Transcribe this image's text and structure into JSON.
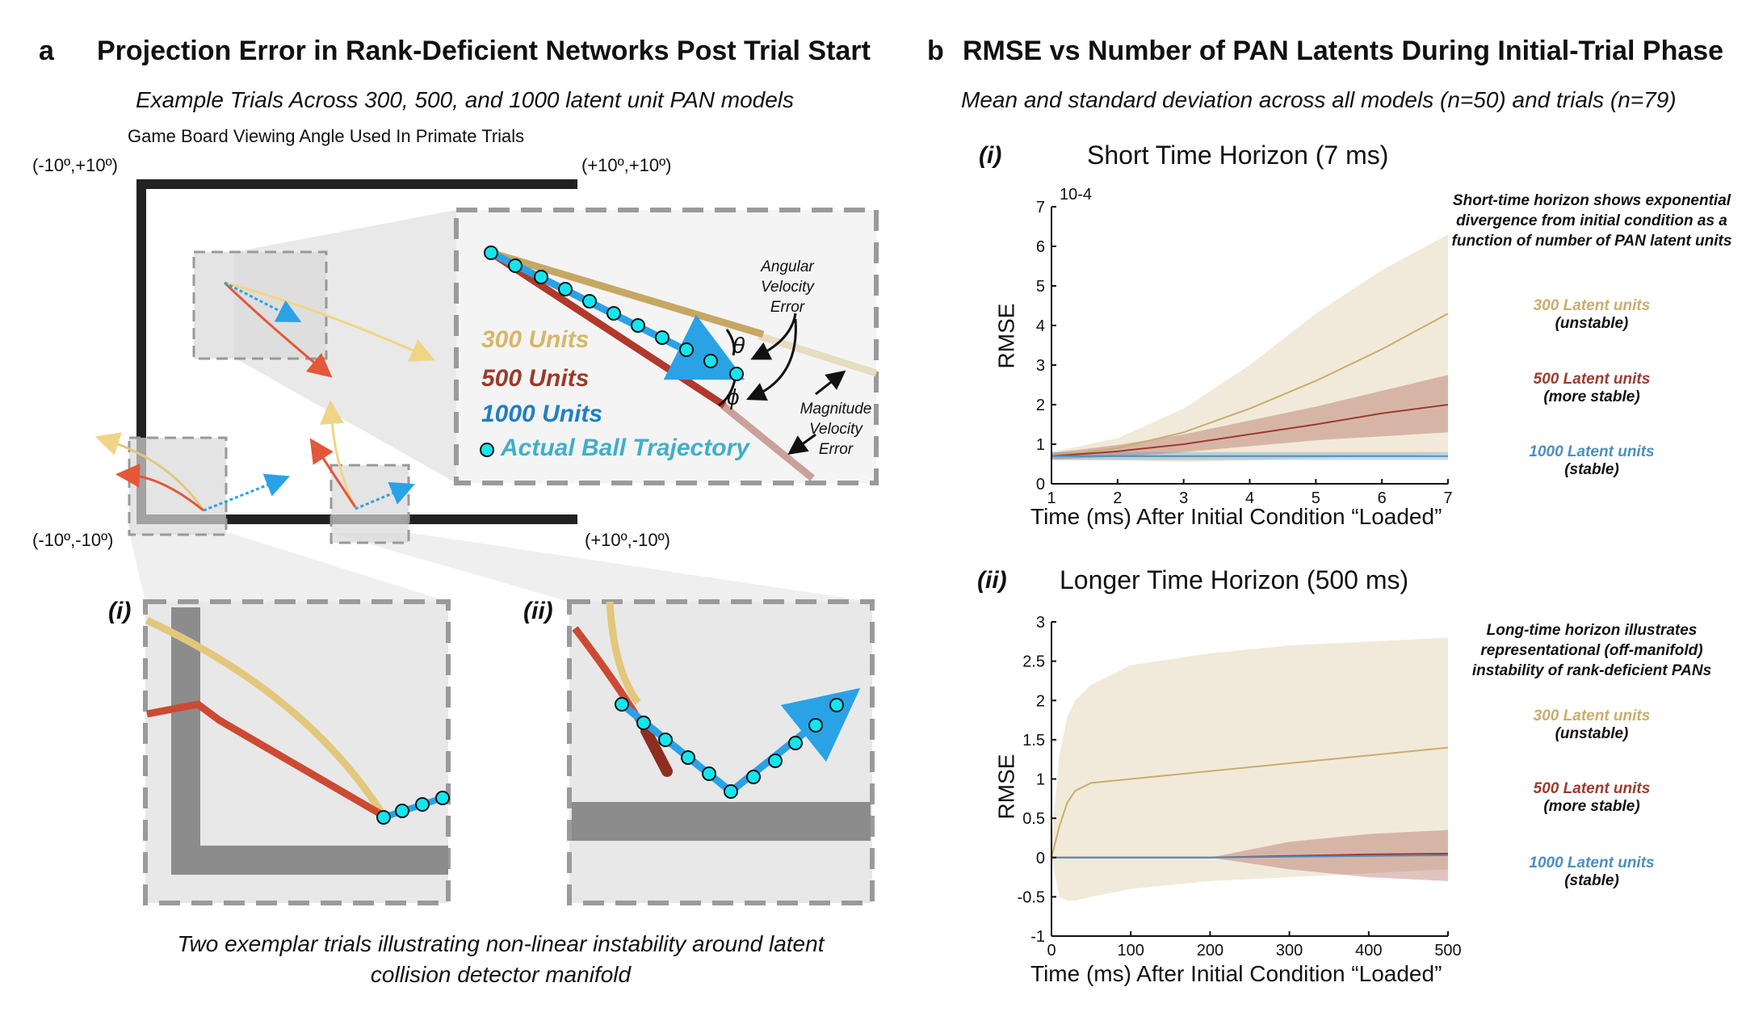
{
  "panel_a": {
    "letter": "a",
    "title": "Projection Error in Rank-Deficient Networks Post Trial Start",
    "subtitle": "Example Trials Across 300, 500, and 1000 latent unit PAN models",
    "board_label": "Game Board Viewing Angle Used In Primate Trials",
    "corners": {
      "top_left": "(-10º,+10º)",
      "top_right": "(+10º,+10º)",
      "bottom_left": "(-10º,-10º)",
      "bottom_right": "(+10º,-10º)"
    },
    "inset_legend": {
      "u300": "300 Units",
      "u500": "500 Units",
      "u1000": "1000 Units",
      "actual": "Actual Ball Trajectory"
    },
    "annotations": {
      "angular_1": "Angular",
      "angular_2": "Velocity",
      "angular_3": "Error",
      "magnitude_1": "Magnitude",
      "magnitude_2": "Velocity",
      "magnitude_3": "Error",
      "theta": "θ",
      "phi": "ϕ"
    },
    "sub_i": "(i)",
    "sub_ii": "(ii)",
    "caption": "Two exemplar trials illustrating non-linear instability around latent collision detector manifold",
    "colors": {
      "u300": "#d4b86a",
      "u500": "#9c3a2a",
      "u1000": "#1f7fc4",
      "actual": "#3fb0c8",
      "ball": "#14e6ee"
    }
  },
  "panel_b": {
    "letter": "b",
    "title": "RMSE vs Number of PAN Latents During Initial-Trial Phase",
    "subtitle": "Mean and standard deviation across all models (n=50) and trials (n=79)",
    "chart_i": {
      "tag": "(i)",
      "title": "Short Time Horizon (7 ms)",
      "note": "Short-time horizon shows exponential divergence from initial condition as a function of number of PAN latent units",
      "legend": [
        {
          "label": "300 Latent units",
          "sub": "(unstable)",
          "color": "#c9ad6c"
        },
        {
          "label": "500 Latent units",
          "sub": "(more stable)",
          "color": "#9b3b30"
        },
        {
          "label": "1000 Latent units",
          "sub": "(stable)",
          "color": "#4b8fc0"
        }
      ]
    },
    "chart_ii": {
      "tag": "(ii)",
      "title": "Longer Time Horizon (500 ms)",
      "note": "Long-time horizon illustrates representational (off-manifold) instability of rank-deficient PANs",
      "legend": [
        {
          "label": "300 Latent units",
          "sub": "(unstable)",
          "color": "#c9ad6c"
        },
        {
          "label": "500 Latent units",
          "sub": "(more stable)",
          "color": "#9b3b30"
        },
        {
          "label": "1000 Latent units",
          "sub": "(stable)",
          "color": "#4b8fc0"
        }
      ]
    }
  },
  "chart_data": [
    {
      "type": "line",
      "title": "Short Time Horizon (7 ms)",
      "xlabel": "Time (ms) After Initial Condition “Loaded”",
      "ylabel": "RMSE",
      "y_multiplier": "10-4",
      "xlim": [
        1,
        7
      ],
      "ylim": [
        0,
        7
      ],
      "xticks": [
        "1",
        "2",
        "3",
        "4",
        "5",
        "6",
        "7"
      ],
      "yticks": [
        "0",
        "1",
        "2",
        "3",
        "4",
        "5",
        "6",
        "7"
      ],
      "x": [
        1,
        2,
        3,
        4,
        5,
        6,
        7
      ],
      "series": [
        {
          "name": "300 Latent units",
          "color": "#c9ad6c",
          "mean": [
            0.7,
            0.9,
            1.3,
            1.9,
            2.6,
            3.4,
            4.3
          ],
          "lower": [
            0.6,
            0.6,
            0.55,
            0.6,
            0.65,
            0.7,
            0.75
          ],
          "upper": [
            0.8,
            1.15,
            1.9,
            3.0,
            4.3,
            5.4,
            6.3
          ]
        },
        {
          "name": "500 Latent units",
          "color": "#9b3b30",
          "mean": [
            0.7,
            0.82,
            1.0,
            1.25,
            1.5,
            1.78,
            2.0
          ],
          "lower": [
            0.62,
            0.68,
            0.8,
            0.95,
            1.1,
            1.2,
            1.3
          ],
          "upper": [
            0.78,
            0.98,
            1.25,
            1.6,
            1.95,
            2.35,
            2.75
          ]
        },
        {
          "name": "1000 Latent units",
          "color": "#4b8fc0",
          "mean": [
            0.7,
            0.7,
            0.7,
            0.7,
            0.7,
            0.7,
            0.7
          ],
          "lower": [
            0.6,
            0.6,
            0.6,
            0.6,
            0.6,
            0.6,
            0.6
          ],
          "upper": [
            0.8,
            0.8,
            0.8,
            0.8,
            0.8,
            0.8,
            0.8
          ]
        }
      ]
    },
    {
      "type": "line",
      "title": "Longer Time Horizon (500 ms)",
      "xlabel": "Time (ms) After Initial Condition “Loaded”",
      "ylabel": "RMSE",
      "xlim": [
        0,
        500
      ],
      "ylim": [
        -1,
        3
      ],
      "xticks": [
        "0",
        "100",
        "200",
        "300",
        "400",
        "500"
      ],
      "yticks": [
        "-1",
        "-0.5",
        "0",
        "0.5",
        "1",
        "1.5",
        "2",
        "2.5",
        "3"
      ],
      "x": [
        0,
        10,
        20,
        30,
        50,
        100,
        200,
        300,
        400,
        500
      ],
      "series": [
        {
          "name": "300 Latent units",
          "color": "#c9ad6c",
          "mean": [
            0.0,
            0.4,
            0.7,
            0.85,
            0.95,
            1.0,
            1.1,
            1.2,
            1.3,
            1.4
          ],
          "lower": [
            0.0,
            -0.5,
            -0.55,
            -0.55,
            -0.5,
            -0.4,
            -0.3,
            -0.25,
            -0.2,
            -0.15
          ],
          "upper": [
            0.2,
            1.3,
            1.8,
            2.0,
            2.2,
            2.45,
            2.6,
            2.7,
            2.75,
            2.8
          ]
        },
        {
          "name": "500 Latent units",
          "color": "#9b3b30",
          "mean": [
            0.0,
            0.0,
            0.0,
            0.0,
            0.0,
            0.0,
            0.0,
            0.02,
            0.04,
            0.05
          ],
          "lower": [
            0.0,
            0.0,
            0.0,
            0.0,
            0.0,
            0.0,
            0.0,
            -0.15,
            -0.25,
            -0.3
          ],
          "upper": [
            0.0,
            0.0,
            0.0,
            0.0,
            0.0,
            0.0,
            0.0,
            0.2,
            0.3,
            0.35
          ]
        },
        {
          "name": "1000 Latent units",
          "color": "#4b8fc0",
          "mean": [
            0.0,
            0.0,
            0.0,
            0.0,
            0.0,
            0.0,
            0.0,
            0.01,
            0.02,
            0.03
          ],
          "lower": [
            0,
            0,
            0,
            0,
            0,
            0,
            0,
            0,
            0,
            0
          ],
          "upper": [
            0,
            0,
            0,
            0,
            0,
            0,
            0,
            0,
            0,
            0
          ]
        }
      ]
    }
  ]
}
